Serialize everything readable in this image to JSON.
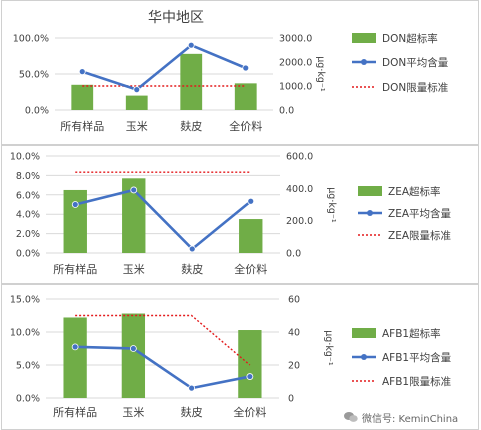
{
  "chart_data": [
    {
      "type": "bar",
      "title": "华中地区",
      "categories": [
        "所有样品",
        "玉米",
        "麸皮",
        "全价料"
      ],
      "y_left": {
        "ticks": [
          "0.0%",
          "50.0%",
          "100.0%"
        ],
        "ylim": [
          0,
          100
        ]
      },
      "y_right": {
        "ticks": [
          "0.0",
          "1000.0",
          "2000.0",
          "3000.0"
        ],
        "ylim": [
          0,
          3000
        ],
        "label": "μg·kg⁻¹"
      },
      "series": [
        {
          "name": "DON超标率",
          "kind": "bar",
          "axis": "left",
          "color": "#70ad47",
          "values": [
            35,
            20,
            78,
            37
          ]
        },
        {
          "name": "DON平均含量",
          "kind": "line",
          "axis": "right",
          "color": "#4472c4",
          "values": [
            1600,
            850,
            2700,
            1750
          ]
        },
        {
          "name": "DON限量标准",
          "kind": "dotted",
          "axis": "right",
          "color": "#e31a1c",
          "values": [
            1000,
            1000,
            1000,
            1000
          ]
        }
      ]
    },
    {
      "type": "bar",
      "title": "",
      "categories": [
        "所有样品",
        "玉米",
        "麸皮",
        "全价料"
      ],
      "y_left": {
        "ticks": [
          "0.0%",
          "2.0%",
          "4.0%",
          "6.0%",
          "8.0%",
          "10.0%"
        ],
        "ylim": [
          0,
          10
        ]
      },
      "y_right": {
        "ticks": [
          "0.0",
          "200.0",
          "400.0",
          "600.0"
        ],
        "ylim": [
          0,
          600
        ],
        "label": "μg·kg⁻¹"
      },
      "series": [
        {
          "name": "ZEA超标率",
          "kind": "bar",
          "axis": "left",
          "color": "#70ad47",
          "values": [
            6.5,
            7.7,
            0,
            3.5
          ]
        },
        {
          "name": "ZEA平均含量",
          "kind": "line",
          "axis": "right",
          "color": "#4472c4",
          "values": [
            300,
            390,
            25,
            320
          ]
        },
        {
          "name": "ZEA限量标准",
          "kind": "dotted",
          "axis": "right",
          "color": "#e31a1c",
          "values": [
            500,
            500,
            500,
            500
          ]
        }
      ]
    },
    {
      "type": "bar",
      "title": "",
      "categories": [
        "所有样品",
        "玉米",
        "麸皮",
        "全价料"
      ],
      "y_left": {
        "ticks": [
          "0.0%",
          "5.0%",
          "10.0%",
          "15.0%"
        ],
        "ylim": [
          0,
          15
        ]
      },
      "y_right": {
        "ticks": [
          "0",
          "20",
          "40",
          "60"
        ],
        "ylim": [
          0,
          60
        ],
        "label": "μg·kg⁻¹"
      },
      "series": [
        {
          "name": "AFB1超标率",
          "kind": "bar",
          "axis": "left",
          "color": "#70ad47",
          "values": [
            12.2,
            12.8,
            0,
            10.3
          ]
        },
        {
          "name": "AFB1平均含量",
          "kind": "line",
          "axis": "right",
          "color": "#4472c4",
          "values": [
            31,
            30,
            6,
            13
          ]
        },
        {
          "name": "AFB1限量标准",
          "kind": "dotted",
          "axis": "right",
          "color": "#e31a1c",
          "values": [
            50,
            50,
            50,
            20
          ]
        }
      ]
    }
  ],
  "watermark": {
    "text": "微信号: KeminChina",
    "icon": "wechat-icon"
  }
}
